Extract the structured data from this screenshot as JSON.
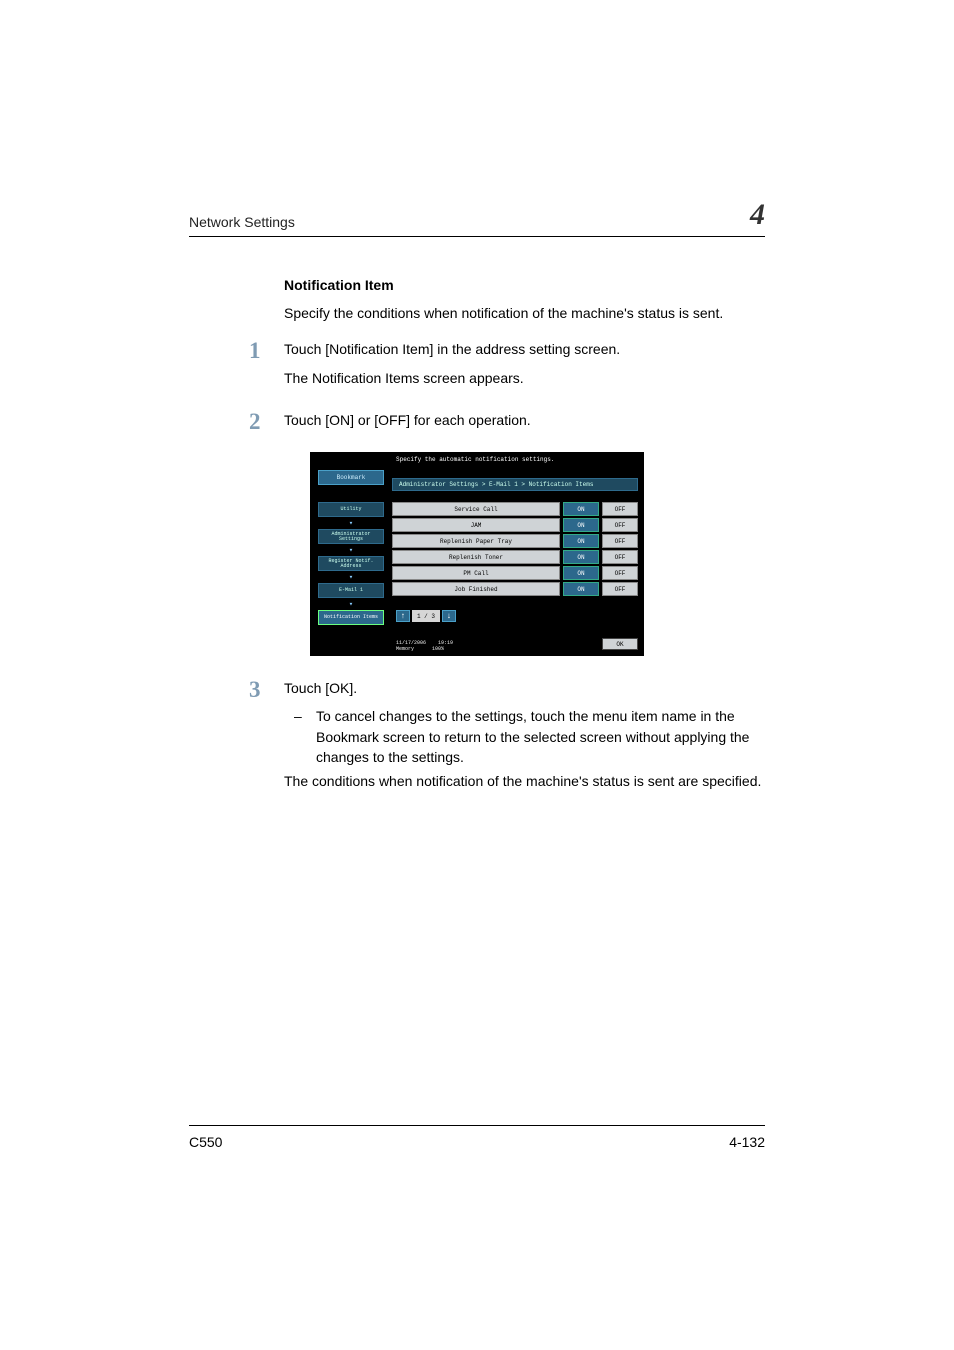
{
  "header": {
    "chapter_title": "Network Settings",
    "chapter_number": "4"
  },
  "section_title": "Notification Item",
  "intro": "Specify the conditions when notification of the machine's status is sent.",
  "steps": {
    "s1": {
      "num": "1",
      "line1": "Touch [Notification Item] in the address setting screen.",
      "line2": "The Notification Items screen appears."
    },
    "s2": {
      "num": "2",
      "line1": "Touch [ON] or [OFF] for each operation."
    },
    "s3": {
      "num": "3",
      "line1": "Touch [OK].",
      "bullet_dash": "–",
      "bullet": "To cancel changes to the settings, touch the menu item name in the Bookmark screen to return to the selected screen without applying the changes to the settings.",
      "line3": "The conditions when notification of the machine's status is sent are specified."
    }
  },
  "device": {
    "instruction": "Specify the automatic notification settings.",
    "bookmark": "Bookmark",
    "breadcrumb": "Administrator Settings > E-Mail 1 > Notification Items",
    "sidebar": {
      "utility": "Utility",
      "admin": "Administrator\nSettings",
      "register": "Register Notif.\nAddress",
      "email": "E-Mail 1",
      "notif": "Notification\nItems"
    },
    "rows": [
      {
        "label": "Service Call",
        "on": "ON",
        "off": "OFF"
      },
      {
        "label": "JAM",
        "on": "ON",
        "off": "OFF"
      },
      {
        "label": "Replenish Paper Tray",
        "on": "ON",
        "off": "OFF"
      },
      {
        "label": "Replenish Toner",
        "on": "ON",
        "off": "OFF"
      },
      {
        "label": "PM Call",
        "on": "ON",
        "off": "OFF"
      },
      {
        "label": "Job Finished",
        "on": "ON",
        "off": "OFF"
      }
    ],
    "pager": {
      "up": "↑",
      "label": "1 / 3",
      "down": "↓"
    },
    "footer": {
      "date": "11/17/2006",
      "time": "19:19",
      "memory": "Memory",
      "pct": "100%"
    },
    "ok": "OK"
  },
  "footer": {
    "model": "C550",
    "pageref": "4-132"
  },
  "colors": {
    "step_num": "#7f9bb3",
    "dev_bg": "#000000",
    "dev_teal": "#2c688c",
    "dev_teal_dark": "#1f4a60",
    "dev_grey": "#cfd3d6"
  }
}
